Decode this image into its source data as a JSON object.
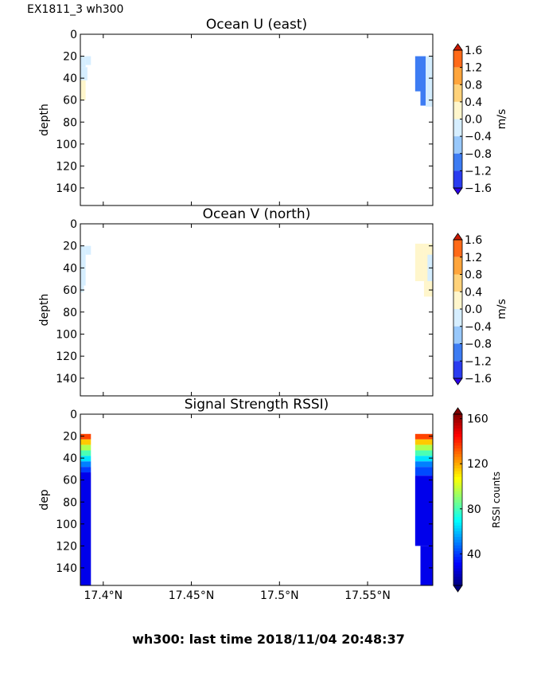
{
  "header": "EX1811_3 wh300",
  "footer": "wh300: last time 2018/11/04 20:48:37",
  "x_ticks": [
    "17.4°N",
    "17.45°N",
    "17.5°N",
    "17.55°N"
  ],
  "x_tick_values": [
    17.4,
    17.45,
    17.5,
    17.55
  ],
  "chart_data": [
    {
      "type": "heatmap",
      "title": "Ocean U (east)",
      "ylabel": "depth",
      "y_ticks": [
        0,
        20,
        40,
        60,
        80,
        100,
        120,
        140
      ],
      "ylim": [
        156,
        0
      ],
      "xlim": [
        17.387,
        17.587
      ],
      "colorbar": {
        "label": "m/s",
        "ticks": [
          "1.6",
          "1.2",
          "0.8",
          "0.4",
          "0.0",
          "−0.4",
          "−0.8",
          "−1.2",
          "−1.6"
        ],
        "range": [
          -1.6,
          1.6
        ]
      },
      "cells": [
        {
          "x": [
            17.387,
            17.39
          ],
          "y": [
            20,
            30
          ],
          "value": -0.2
        },
        {
          "x": [
            17.39,
            17.393
          ],
          "y": [
            20,
            28
          ],
          "value": -0.2
        },
        {
          "x": [
            17.387,
            17.391
          ],
          "y": [
            30,
            42
          ],
          "value": -0.2
        },
        {
          "x": [
            17.387,
            17.39
          ],
          "y": [
            42,
            60
          ],
          "value": 0.2
        },
        {
          "x": [
            17.577,
            17.58
          ],
          "y": [
            20,
            52
          ],
          "value": -1.0
        },
        {
          "x": [
            17.58,
            17.583
          ],
          "y": [
            20,
            65
          ],
          "value": -1.0
        },
        {
          "x": [
            17.583,
            17.587
          ],
          "y": [
            20,
            66
          ],
          "value": -0.2
        }
      ]
    },
    {
      "type": "heatmap",
      "title": "Ocean V (north)",
      "ylabel": "depth",
      "y_ticks": [
        0,
        20,
        40,
        60,
        80,
        100,
        120,
        140
      ],
      "ylim": [
        156,
        0
      ],
      "xlim": [
        17.387,
        17.587
      ],
      "colorbar": {
        "label": "m/s",
        "ticks": [
          "1.6",
          "1.2",
          "0.8",
          "0.4",
          "0.0",
          "−0.4",
          "−0.8",
          "−1.2",
          "−1.6"
        ],
        "range": [
          -1.6,
          1.6
        ]
      },
      "cells": [
        {
          "x": [
            17.387,
            17.39
          ],
          "y": [
            20,
            56
          ],
          "value": -0.2
        },
        {
          "x": [
            17.39,
            17.393
          ],
          "y": [
            20,
            28
          ],
          "value": -0.2
        },
        {
          "x": [
            17.387,
            17.389
          ],
          "y": [
            56,
            62
          ],
          "value": -0.2
        },
        {
          "x": [
            17.577,
            17.582
          ],
          "y": [
            18,
            52
          ],
          "value": 0.2
        },
        {
          "x": [
            17.582,
            17.587
          ],
          "y": [
            18,
            66
          ],
          "value": 0.2
        },
        {
          "x": [
            17.584,
            17.587
          ],
          "y": [
            28,
            52
          ],
          "value": -0.2
        }
      ]
    },
    {
      "type": "heatmap",
      "title": "Signal Strength RSSI)",
      "ylabel": "dep",
      "y_ticks": [
        0,
        20,
        40,
        60,
        80,
        100,
        120,
        140
      ],
      "ylim": [
        156,
        0
      ],
      "xlim": [
        17.387,
        17.587
      ],
      "colorbar": {
        "label": "RSSI counts",
        "ticks": [
          "160",
          "120",
          "80",
          "40"
        ],
        "range": [
          12,
          164
        ]
      },
      "cells": [
        {
          "x": [
            17.387,
            17.393
          ],
          "y": [
            18,
            23
          ],
          "value": 135
        },
        {
          "x": [
            17.387,
            17.393
          ],
          "y": [
            23,
            28
          ],
          "value": 115
        },
        {
          "x": [
            17.387,
            17.393
          ],
          "y": [
            28,
            33
          ],
          "value": 95
        },
        {
          "x": [
            17.387,
            17.393
          ],
          "y": [
            33,
            38
          ],
          "value": 80
        },
        {
          "x": [
            17.387,
            17.393
          ],
          "y": [
            38,
            43
          ],
          "value": 65
        },
        {
          "x": [
            17.387,
            17.393
          ],
          "y": [
            43,
            48
          ],
          "value": 50
        },
        {
          "x": [
            17.387,
            17.393
          ],
          "y": [
            48,
            53
          ],
          "value": 40
        },
        {
          "x": [
            17.387,
            17.393
          ],
          "y": [
            53,
            156
          ],
          "value": 28
        },
        {
          "x": [
            17.577,
            17.587
          ],
          "y": [
            18,
            23
          ],
          "value": 135
        },
        {
          "x": [
            17.577,
            17.587
          ],
          "y": [
            23,
            28
          ],
          "value": 115
        },
        {
          "x": [
            17.577,
            17.587
          ],
          "y": [
            28,
            33
          ],
          "value": 95
        },
        {
          "x": [
            17.577,
            17.587
          ],
          "y": [
            33,
            38
          ],
          "value": 80
        },
        {
          "x": [
            17.577,
            17.587
          ],
          "y": [
            38,
            43
          ],
          "value": 65
        },
        {
          "x": [
            17.577,
            17.587
          ],
          "y": [
            43,
            48
          ],
          "value": 50
        },
        {
          "x": [
            17.577,
            17.587
          ],
          "y": [
            48,
            56
          ],
          "value": 42
        },
        {
          "x": [
            17.577,
            17.587
          ],
          "y": [
            56,
            120
          ],
          "value": 28
        },
        {
          "x": [
            17.58,
            17.587
          ],
          "y": [
            120,
            156
          ],
          "value": 28
        }
      ]
    }
  ]
}
